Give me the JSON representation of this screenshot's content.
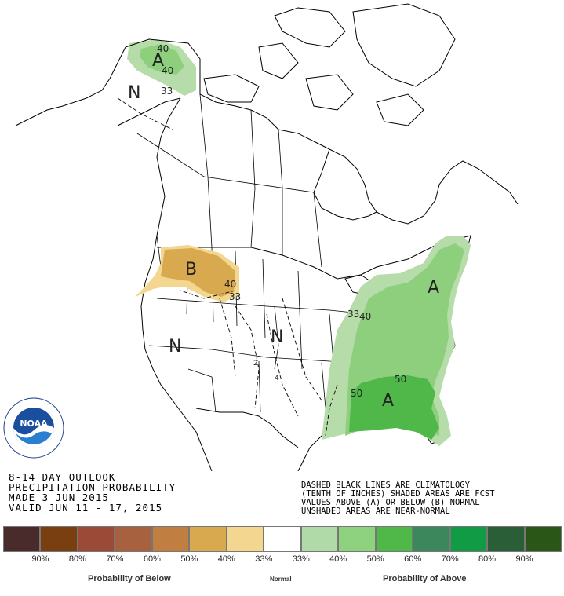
{
  "outlook": {
    "title": "8-14 DAY OUTLOOK",
    "subtitle": "PRECIPITATION PROBABILITY",
    "made": "MADE  3 JUN 2015",
    "valid": "VALID  JUN 11 - 17, 2015"
  },
  "notes": {
    "line1": "DASHED BLACK LINES ARE CLIMATOLOGY",
    "line2": "(TENTH OF INCHES) SHADED AREAS ARE FCST",
    "line3": "VALUES ABOVE (A) OR BELOW (B) NORMAL",
    "line4": "UNSHADED AREAS ARE NEAR-NORMAL"
  },
  "noaa_logo": {
    "text": "NOAA",
    "ring_text": "NATIONAL OCEANIC AND ATMOSPHERIC ADMINISTRATION · U.S. DEPARTMENT OF COMMERCE"
  },
  "map_labels": {
    "alaska_a": "A",
    "alaska_n": "N",
    "alaska_40a": "40",
    "alaska_40b": "40",
    "alaska_33": "33",
    "nw_b": "B",
    "nw_40": "40",
    "nw_33": "33",
    "west_n": "N",
    "central_n": "N",
    "east_a": "A",
    "east_40": "40",
    "east_33": "33",
    "se_a": "A",
    "se_50a": "50",
    "se_50b": "50",
    "clim_2": "2",
    "clim_4": "4"
  },
  "legend": {
    "below_caption": "Probability of Below",
    "normal_caption": "Normal",
    "above_caption": "Probability of Above",
    "colors": [
      "#4a2b2b",
      "#7a3f10",
      "#9c4a38",
      "#a8613e",
      "#c07e40",
      "#d8a94f",
      "#f3d68f",
      "#ffffff",
      "#b0dba8",
      "#8ed17e",
      "#4fb848",
      "#3d875c",
      "#119b45",
      "#2a5e37",
      "#2a5618"
    ],
    "labels": [
      "90%",
      "80%",
      "70%",
      "60%",
      "50%",
      "40%",
      "33%",
      "33%",
      "40%",
      "50%",
      "60%",
      "70%",
      "80%",
      "90%"
    ]
  }
}
